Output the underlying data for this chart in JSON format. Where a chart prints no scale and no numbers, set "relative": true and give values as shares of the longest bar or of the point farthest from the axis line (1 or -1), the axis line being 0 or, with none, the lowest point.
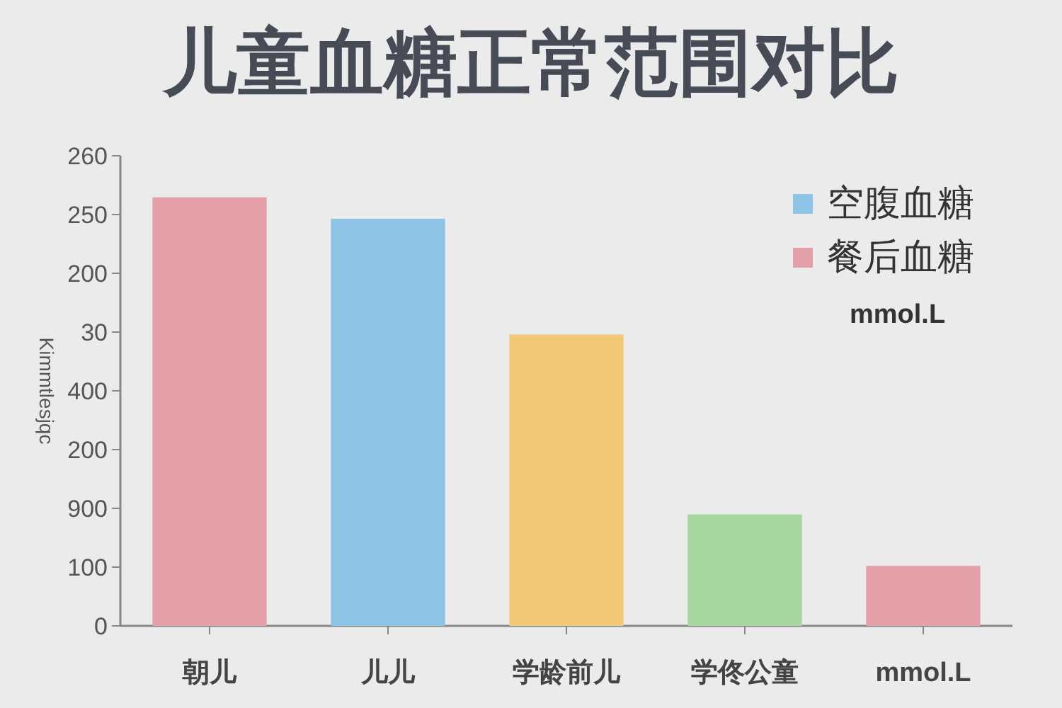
{
  "chart_data": {
    "type": "bar",
    "title": "儿童血糖正常范围对比",
    "ylabel": "Kimmtlesjqc",
    "categories": [
      "朝儿",
      "儿儿",
      "学龄前儿",
      "学佟公童",
      "mmol.L"
    ],
    "series": [
      {
        "name": "空腹血糖",
        "color": "#8ec4e6",
        "values": [
          null,
          0.95,
          null,
          null,
          null
        ]
      },
      {
        "name": "餐后血糖",
        "color": "#e3a0a8",
        "values": [
          1,
          null,
          null,
          null,
          0.14
        ]
      },
      {
        "color": "#f0c878",
        "values": [
          null,
          null,
          0.68,
          null,
          null
        ]
      },
      {
        "color": "#a7d6a0",
        "values": [
          null,
          null,
          null,
          0.26,
          null
        ]
      }
    ],
    "relative": true,
    "legend": "top right",
    "annotations": [
      "mmol.L",
      "260",
      "250",
      "200",
      "30",
      "400",
      "200",
      "900",
      "100",
      "0"
    ]
  }
}
